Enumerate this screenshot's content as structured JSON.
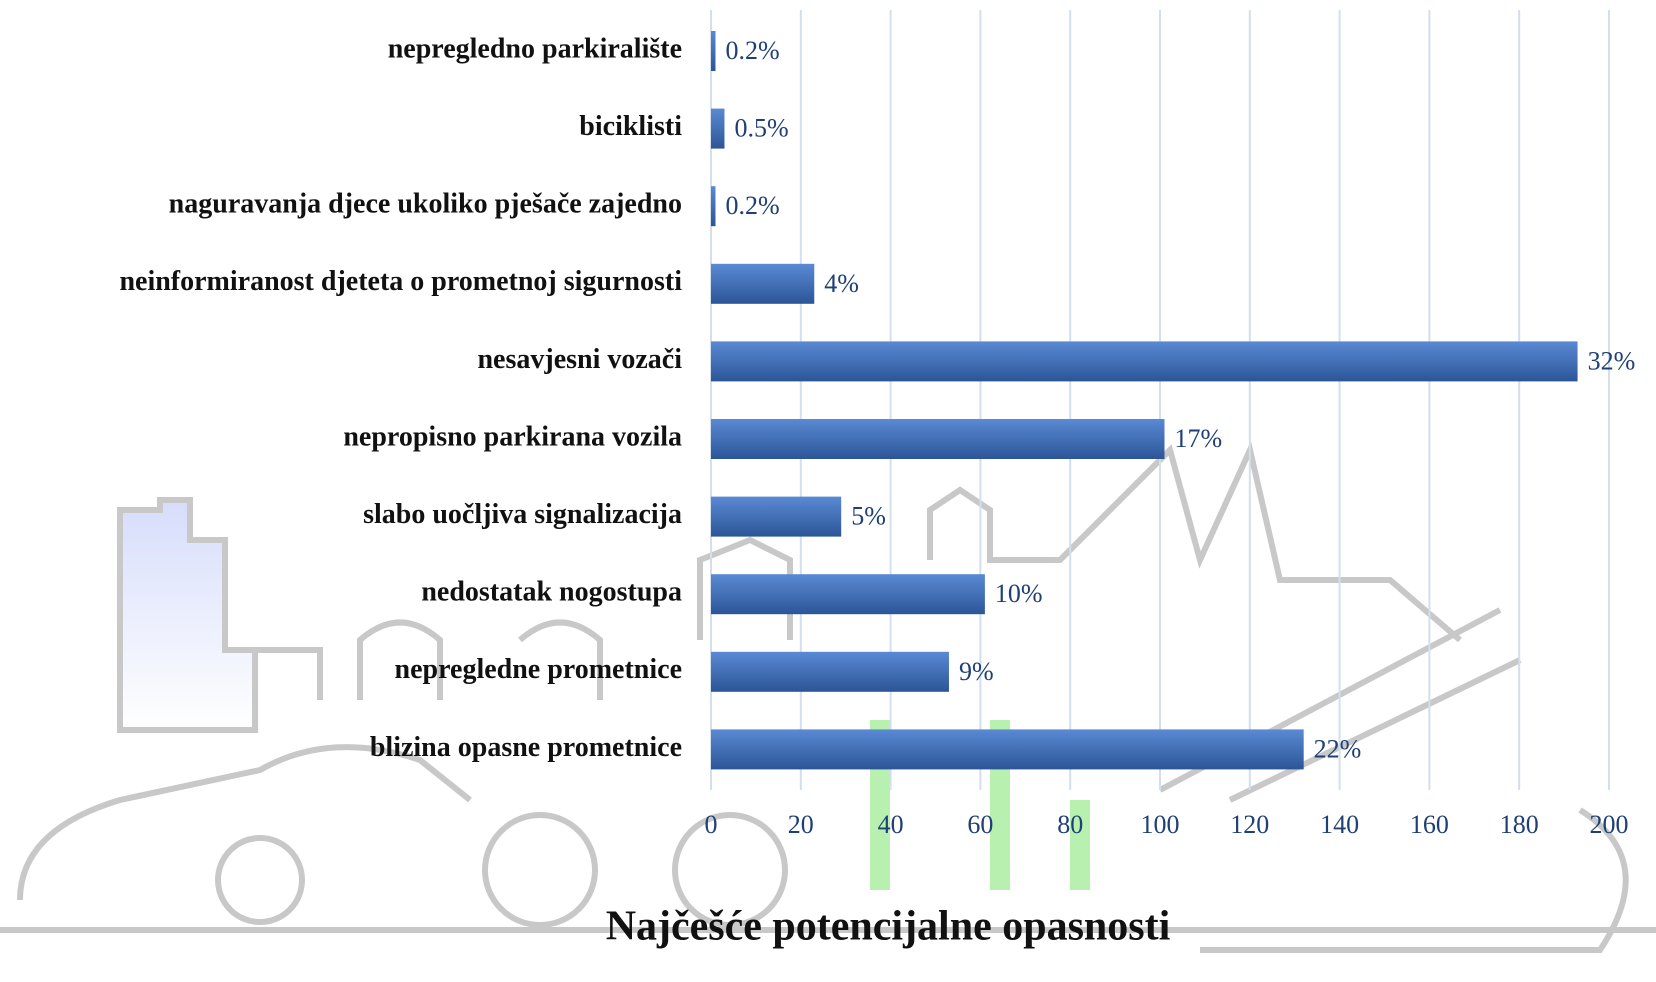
{
  "chart_data": {
    "type": "hbar",
    "title": "Najčešće potencijalne opasnosti",
    "categories": [
      "nepregledno parkiralište",
      "biciklisti",
      "naguravanja djece ukoliko pješače zajedno",
      "neinformiranost djeteta o prometnoj sigurnosti",
      "nesavjesni vozači",
      "nepropisno parkirana vozila",
      "slabo uočljiva signalizacija",
      "nedostatak nogostupa",
      "nepregledne prometnice",
      "blizina opasne prometnice"
    ],
    "values": [
      1,
      3,
      1,
      23,
      193,
      101,
      29,
      61,
      53,
      132
    ],
    "value_labels": [
      "0.2%",
      "0.5%",
      "0.2%",
      "4%",
      "32%",
      "17%",
      "5%",
      "10%",
      "9%",
      "22%"
    ],
    "color": "#3a6db5",
    "xlim": [
      0,
      200
    ],
    "xticks": [
      0,
      20,
      40,
      60,
      80,
      100,
      120,
      140,
      160,
      180,
      200
    ],
    "grid": true
  }
}
